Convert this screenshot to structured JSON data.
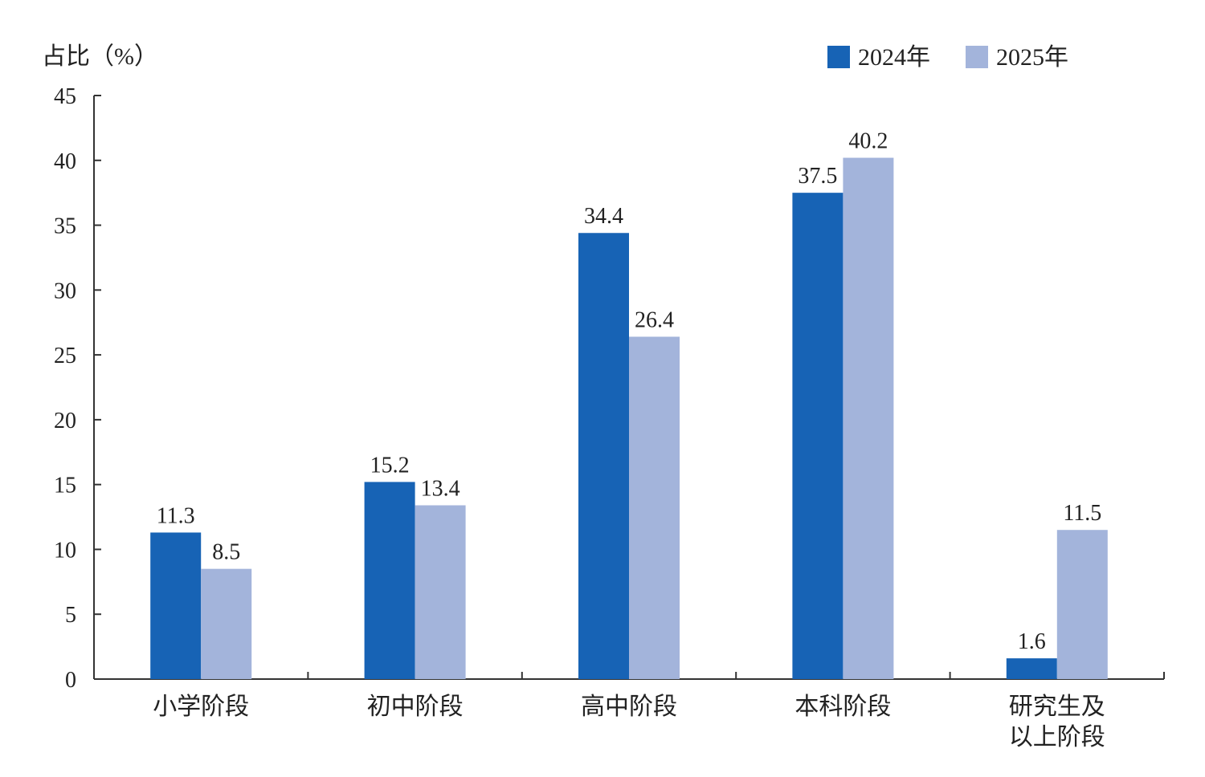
{
  "chart_data": {
    "type": "bar",
    "ylabel": "占比（%）",
    "xlabel": "",
    "ylim": [
      0,
      45
    ],
    "yticks": [
      0,
      5,
      10,
      15,
      20,
      25,
      30,
      35,
      40,
      45
    ],
    "grid": false,
    "legend_position": "top-right",
    "categories": [
      [
        "小学阶段"
      ],
      [
        "初中阶段"
      ],
      [
        "高中阶段"
      ],
      [
        "本科阶段"
      ],
      [
        "研究生及",
        "以上阶段"
      ]
    ],
    "series": [
      {
        "name": "2024年",
        "color": "#1763b5",
        "values": [
          11.3,
          15.2,
          34.4,
          37.5,
          1.6
        ],
        "labels": [
          "11.3",
          "15.2",
          "34.4",
          "37.5",
          "1.6"
        ]
      },
      {
        "name": "2025年",
        "color": "#a3b4db",
        "values": [
          8.5,
          13.4,
          26.4,
          40.2,
          11.5
        ],
        "labels": [
          "8.5",
          "13.4",
          "26.4",
          "40.2",
          "11.5"
        ]
      }
    ]
  }
}
